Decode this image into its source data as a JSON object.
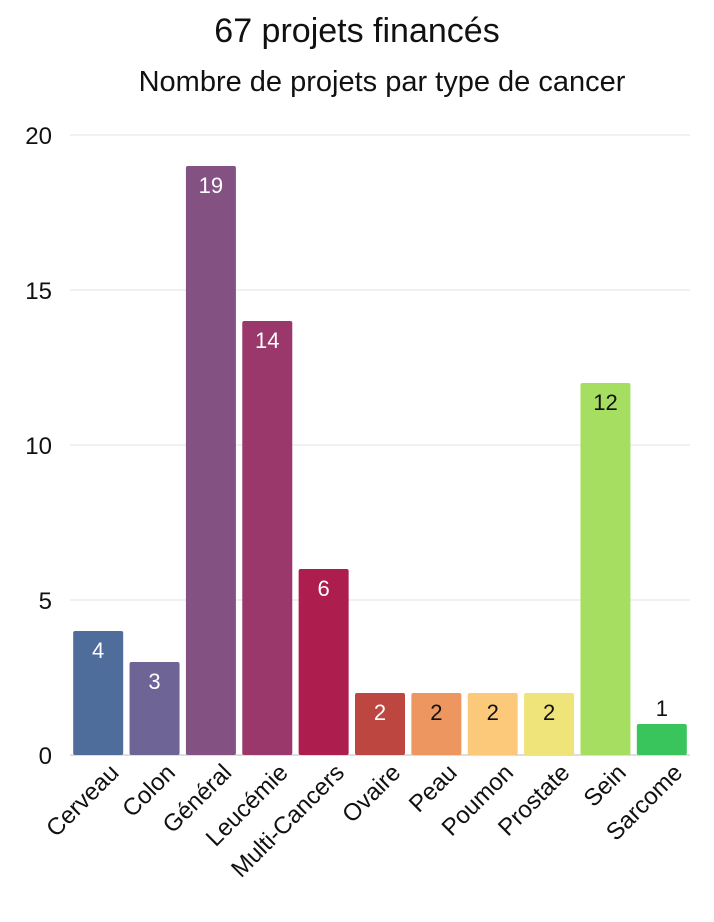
{
  "chart_data": {
    "type": "bar",
    "title": "67 projets financés",
    "subtitle": "Nombre de projets par type de cancer",
    "categories": [
      "Cerveau",
      "Colon",
      "Général",
      "Leucémie",
      "Multi-Cancers",
      "Ovaire",
      "Peau",
      "Poumon",
      "Prostate",
      "Sein",
      "Sarcome"
    ],
    "values": [
      4,
      3,
      19,
      14,
      6,
      2,
      2,
      2,
      2,
      12,
      1
    ],
    "colors": [
      "#4e6d9b",
      "#6f6496",
      "#845183",
      "#9a376b",
      "#ad1d4d",
      "#be4640",
      "#ee9660",
      "#fcc97b",
      "#efe479",
      "#a6de62",
      "#3ac55c"
    ],
    "label_colors": [
      "#ffffff",
      "#ffffff",
      "#ffffff",
      "#ffffff",
      "#ffffff",
      "#ffffff",
      "#111111",
      "#111111",
      "#111111",
      "#111111",
      "#111111"
    ],
    "ylim": [
      0,
      20
    ],
    "yticks": [
      0,
      5,
      10,
      15,
      20
    ],
    "grid": true,
    "legend": "none"
  }
}
